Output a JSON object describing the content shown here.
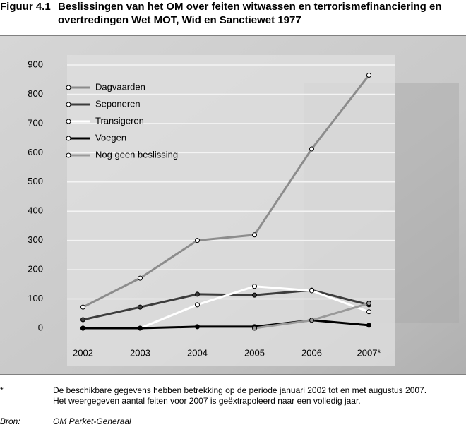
{
  "figure_label": "Figuur 4.1",
  "chart_data": {
    "type": "line",
    "title": "Beslissingen van het OM over feiten witwassen en terrorismefinanciering en overtredingen Wet MOT, Wid en Sanctiewet 1977",
    "categories": [
      "2002",
      "2003",
      "2004",
      "2005",
      "2006",
      "2007*"
    ],
    "series": [
      {
        "name": "Dagvaarden",
        "color": "#8c8c8c",
        "values": [
          72,
          171,
          300,
          319,
          613,
          865
        ]
      },
      {
        "name": "Seponeren",
        "color": "#3c3c3c",
        "values": [
          29,
          72,
          116,
          113,
          130,
          80
        ]
      },
      {
        "name": "Transigeren",
        "color": "#ffffff",
        "values": [
          0,
          0,
          80,
          143,
          128,
          56
        ]
      },
      {
        "name": "Voegen",
        "color": "#000000",
        "values": [
          0,
          0,
          5,
          5,
          27,
          10
        ]
      },
      {
        "name": "Nog geen beslissing",
        "color": "#9a9a9a",
        "values": [
          null,
          null,
          null,
          0,
          27,
          85
        ]
      }
    ],
    "ylim": [
      0,
      900
    ],
    "yticks": [
      0,
      100,
      200,
      300,
      400,
      500,
      600,
      700,
      800,
      900
    ],
    "grid": true,
    "legend": "upper-left"
  },
  "footnote": {
    "marker": "*",
    "lines": [
      "De beschikbare gegevens hebben betrekking op de periode januari 2002 tot en met augustus 2007.",
      "Het weergegeven aantal feiten voor 2007 is geëxtrapoleerd naar een volledig jaar."
    ]
  },
  "source": {
    "label": "Bron:",
    "text": "OM Parket-Generaal"
  }
}
